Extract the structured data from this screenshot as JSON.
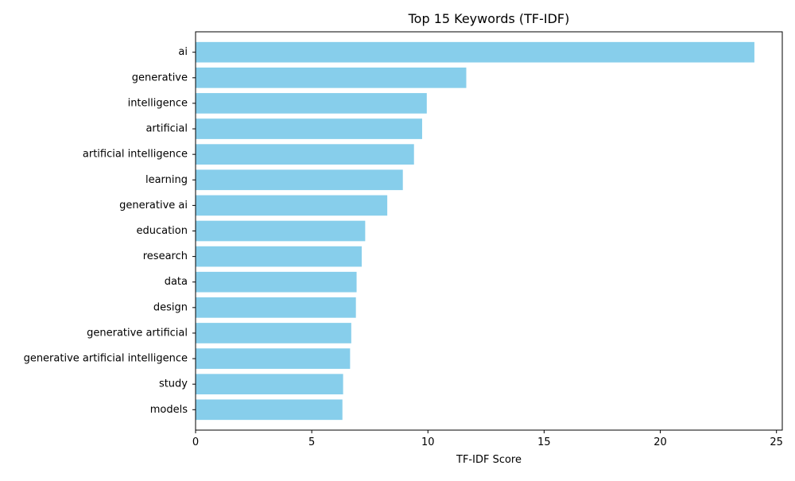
{
  "chart_data": {
    "type": "bar",
    "orientation": "horizontal",
    "title": "Top 15 Keywords (TF-IDF)",
    "xlabel": "TF-IDF Score",
    "ylabel": "",
    "xlim": [
      0,
      25.25
    ],
    "xticks": [
      0,
      5,
      10,
      15,
      20,
      25
    ],
    "grid": false,
    "bar_color": "#87CEEB",
    "categories": [
      "ai",
      "generative",
      "intelligence",
      "artificial",
      "artificial intelligence",
      "learning",
      "generative ai",
      "education",
      "research",
      "data",
      "design",
      "generative artificial",
      "generative artificial intelligence",
      "study",
      "models"
    ],
    "values": [
      24.05,
      11.65,
      9.95,
      9.75,
      9.4,
      8.92,
      8.25,
      7.3,
      7.15,
      6.93,
      6.9,
      6.7,
      6.65,
      6.35,
      6.32
    ]
  }
}
